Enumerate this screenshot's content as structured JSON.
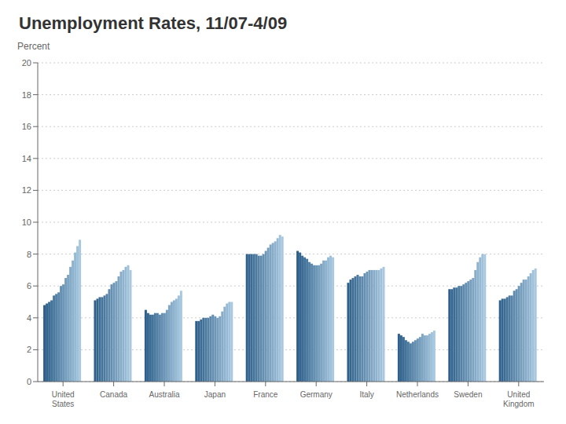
{
  "chart_data": {
    "type": "bar",
    "title": "Unemployment Rates, 11/07-4/09",
    "ylabel": "Percent",
    "categories": [
      "United\nStates",
      "Canada",
      "Australia",
      "Japan",
      "France",
      "Germany",
      "Italy",
      "Netherlands",
      "Sweden",
      "United\nKingdom"
    ],
    "series": [
      {
        "color": "#2d5f8a",
        "values": [
          4.8,
          5.1,
          4.5,
          3.8,
          8.0,
          8.2,
          6.2,
          3.0,
          5.8,
          5.1
        ]
      },
      {
        "color": "#35668f",
        "values": [
          4.9,
          5.2,
          4.3,
          3.8,
          8.0,
          8.1,
          6.4,
          2.9,
          5.8,
          5.2
        ]
      },
      {
        "color": "#3d6d95",
        "values": [
          5.0,
          5.3,
          4.2,
          3.9,
          8.0,
          7.9,
          6.5,
          2.8,
          5.9,
          5.2
        ]
      },
      {
        "color": "#45749b",
        "values": [
          5.1,
          5.3,
          4.2,
          4.0,
          8.0,
          7.8,
          6.6,
          2.6,
          5.9,
          5.3
        ]
      },
      {
        "color": "#4d7ba0",
        "values": [
          5.4,
          5.4,
          4.3,
          4.0,
          8.0,
          7.7,
          6.7,
          2.5,
          6.0,
          5.4
        ]
      },
      {
        "color": "#5682a6",
        "values": [
          5.5,
          5.5,
          4.3,
          4.0,
          7.9,
          7.5,
          6.6,
          2.4,
          6.0,
          5.4
        ]
      },
      {
        "color": "#5e89ac",
        "values": [
          5.6,
          5.8,
          4.2,
          4.1,
          7.9,
          7.4,
          6.6,
          2.5,
          6.1,
          5.7
        ]
      },
      {
        "color": "#6690b2",
        "values": [
          6.0,
          6.1,
          4.3,
          4.2,
          8.0,
          7.3,
          6.8,
          2.6,
          6.2,
          5.8
        ]
      },
      {
        "color": "#6e97b7",
        "values": [
          6.1,
          6.2,
          4.3,
          4.1,
          8.2,
          7.3,
          6.9,
          2.7,
          6.3,
          6.0
        ]
      },
      {
        "color": "#769ebd",
        "values": [
          6.5,
          6.3,
          4.5,
          4.0,
          8.4,
          7.3,
          7.0,
          2.8,
          6.4,
          6.2
        ]
      },
      {
        "color": "#7fa5c3",
        "values": [
          6.7,
          6.6,
          4.8,
          4.1,
          8.6,
          7.4,
          7.0,
          3.0,
          6.5,
          6.4
        ]
      },
      {
        "color": "#87acc9",
        "values": [
          7.2,
          6.9,
          5.0,
          4.4,
          8.7,
          7.6,
          7.0,
          2.9,
          7.0,
          6.4
        ]
      },
      {
        "color": "#8fb3ce",
        "values": [
          7.6,
          7.0,
          5.1,
          4.7,
          8.8,
          7.6,
          7.0,
          2.9,
          7.5,
          6.6
        ]
      },
      {
        "color": "#97bad4",
        "values": [
          8.1,
          7.2,
          5.2,
          4.9,
          9.0,
          7.8,
          7.0,
          3.0,
          7.8,
          6.8
        ]
      },
      {
        "color": "#9fc1da",
        "values": [
          8.5,
          7.3,
          5.4,
          5.0,
          9.2,
          7.9,
          7.1,
          3.1,
          8.0,
          7.0
        ]
      },
      {
        "color": "#a8c8e0",
        "values": [
          8.9,
          7.0,
          5.7,
          5.0,
          9.1,
          7.8,
          7.2,
          3.2,
          8.0,
          7.1
        ]
      }
    ],
    "ylim": [
      0,
      20
    ],
    "yticks": [
      0,
      2,
      4,
      6,
      8,
      10,
      12,
      14,
      16,
      18,
      20
    ],
    "grid": true
  }
}
